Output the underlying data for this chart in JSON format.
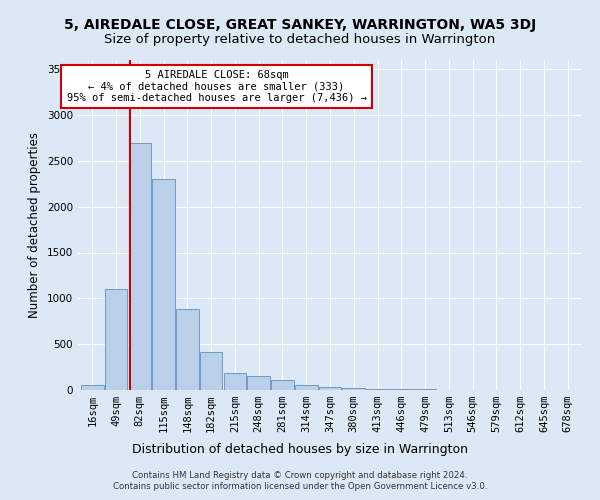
{
  "title": "5, AIREDALE CLOSE, GREAT SANKEY, WARRINGTON, WA5 3DJ",
  "subtitle": "Size of property relative to detached houses in Warrington",
  "xlabel": "Distribution of detached houses by size in Warrington",
  "ylabel": "Number of detached properties",
  "categories": [
    "16sqm",
    "49sqm",
    "82sqm",
    "115sqm",
    "148sqm",
    "182sqm",
    "215sqm",
    "248sqm",
    "281sqm",
    "314sqm",
    "347sqm",
    "380sqm",
    "413sqm",
    "446sqm",
    "479sqm",
    "513sqm",
    "546sqm",
    "579sqm",
    "612sqm",
    "645sqm",
    "678sqm"
  ],
  "values": [
    60,
    1100,
    2700,
    2300,
    880,
    420,
    190,
    150,
    110,
    60,
    35,
    25,
    15,
    10,
    8,
    5,
    3,
    3,
    2,
    1,
    0
  ],
  "bar_color": "#bad0e8",
  "bar_edge_color": "#6090c0",
  "annotation_line1": "5 AIREDALE CLOSE: 68sqm",
  "annotation_line2": "← 4% of detached houses are smaller (333)",
  "annotation_line3": "95% of semi-detached houses are larger (7,436) →",
  "annotation_box_color": "#ffffff",
  "annotation_box_edge_color": "#cc0000",
  "vline_color": "#cc0000",
  "ylim": [
    0,
    3600
  ],
  "yticks": [
    0,
    500,
    1000,
    1500,
    2000,
    2500,
    3000,
    3500
  ],
  "title_fontsize": 10,
  "subtitle_fontsize": 9.5,
  "xlabel_fontsize": 9,
  "ylabel_fontsize": 8.5,
  "tick_fontsize": 7.5,
  "footer_line1": "Contains HM Land Registry data © Crown copyright and database right 2024.",
  "footer_line2": "Contains public sector information licensed under the Open Government Licence v3.0.",
  "background_color": "#dce8f5",
  "plot_bg_color": "#dce8f5"
}
